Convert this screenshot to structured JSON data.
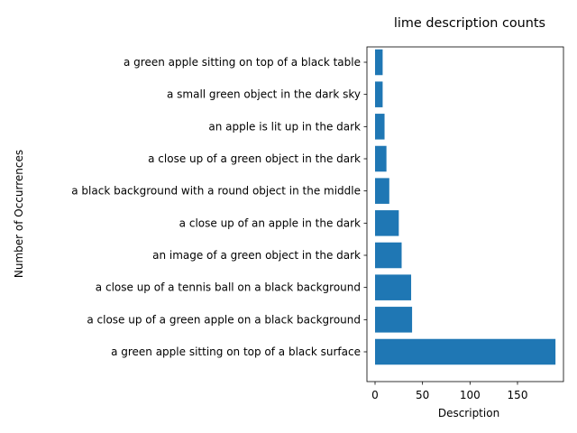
{
  "chart_data": {
    "type": "bar",
    "orientation": "horizontal",
    "title": "lime description counts",
    "xlabel": "Description",
    "ylabel": "Number of Occurrences",
    "categories": [
      "a green apple sitting on top of a black surface",
      "a close up of a green apple on a black background",
      "a close up of a tennis ball on a black background",
      "an image of a green object in the dark",
      "a close up of an apple in the dark",
      "a black background with a round object in the middle",
      "a close up of a green object in the dark",
      "an apple is lit up in the dark",
      "a small green object in the dark sky",
      "a green apple sitting on top of a black table"
    ],
    "values": [
      190,
      39,
      38,
      28,
      25,
      15,
      12,
      10,
      8,
      8
    ],
    "xlim": [
      0,
      200
    ],
    "xticks": [
      0,
      50,
      100,
      150
    ],
    "bar_color": "#1f77b4",
    "grid": false
  }
}
